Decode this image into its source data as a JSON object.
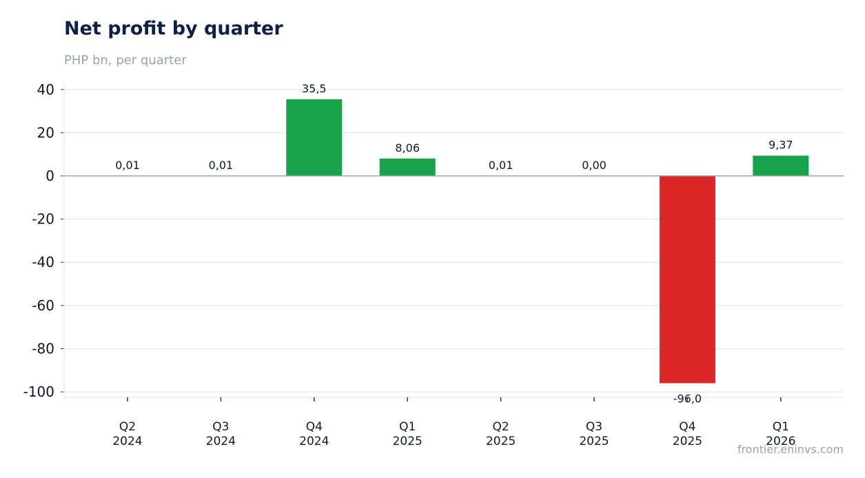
{
  "title": "Net profit by quarter",
  "subtitle": "PHP bn, per quarter",
  "watermark": "frontier.eninvs.com",
  "colors": {
    "positive": "#18a34a",
    "negative": "#dc2626",
    "grid": "#e2e8f0",
    "zero_line": "#94a3b8",
    "text": "#111827"
  },
  "chart_data": {
    "type": "bar",
    "categories": [
      [
        "Q2",
        "2024"
      ],
      [
        "Q3",
        "2024"
      ],
      [
        "Q4",
        "2024"
      ],
      [
        "Q1",
        "2025"
      ],
      [
        "Q2",
        "2025"
      ],
      [
        "Q3",
        "2025"
      ],
      [
        "Q4",
        "2025"
      ],
      [
        "Q1",
        "2026"
      ]
    ],
    "values": [
      0.01,
      0.01,
      35.5,
      8.06,
      0.01,
      0.0,
      -96.0,
      9.37
    ],
    "data_labels": [
      "0,01",
      "0,01",
      "35,5",
      "8,06",
      "0,01",
      "0,00",
      "-96,0",
      "9,37"
    ],
    "y_ticks": [
      40,
      20,
      0,
      -20,
      -40,
      -60,
      -80,
      -100
    ],
    "y_tick_labels": [
      "40",
      "20",
      "0",
      "-20",
      "-40",
      "-60",
      "-80",
      "-100"
    ],
    "ylim": [
      -102.5,
      42
    ],
    "grid": true,
    "xlabel": "",
    "ylabel": ""
  }
}
